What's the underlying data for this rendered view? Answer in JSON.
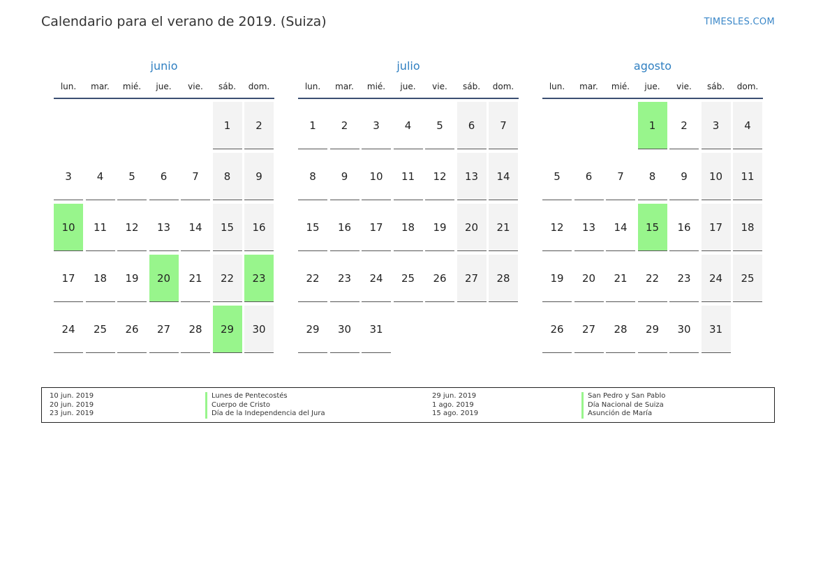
{
  "title": "Calendario para el verano de 2019. (Suiza)",
  "brand": "TIMESLES.COM",
  "colors": {
    "holiday": "#98f58c",
    "weekend": "#f3f3f3",
    "month_name": "#2f7fc1"
  },
  "weekdays": [
    "lun.",
    "mar.",
    "mié.",
    "jue.",
    "vie.",
    "sáb.",
    "dom."
  ],
  "months": [
    {
      "name": "junio",
      "offset": 5,
      "days": 30,
      "holidays": [
        10,
        20,
        23,
        29
      ]
    },
    {
      "name": "julio",
      "offset": 0,
      "days": 31,
      "holidays": []
    },
    {
      "name": "agosto",
      "offset": 3,
      "days": 31,
      "holidays": [
        1,
        15
      ]
    }
  ],
  "legend": [
    {
      "date": "10 jun. 2019",
      "name": "Lunes de Pentecostés"
    },
    {
      "date": "20 jun. 2019",
      "name": "Cuerpo de Cristo"
    },
    {
      "date": "23 jun. 2019",
      "name": "Día de la Independencia del Jura"
    },
    {
      "date": "29 jun. 2019",
      "name": "San Pedro y San Pablo"
    },
    {
      "date": "1 ago. 2019",
      "name": "Día Nacional de Suiza"
    },
    {
      "date": "15 ago. 2019",
      "name": "Asunción de María"
    }
  ]
}
